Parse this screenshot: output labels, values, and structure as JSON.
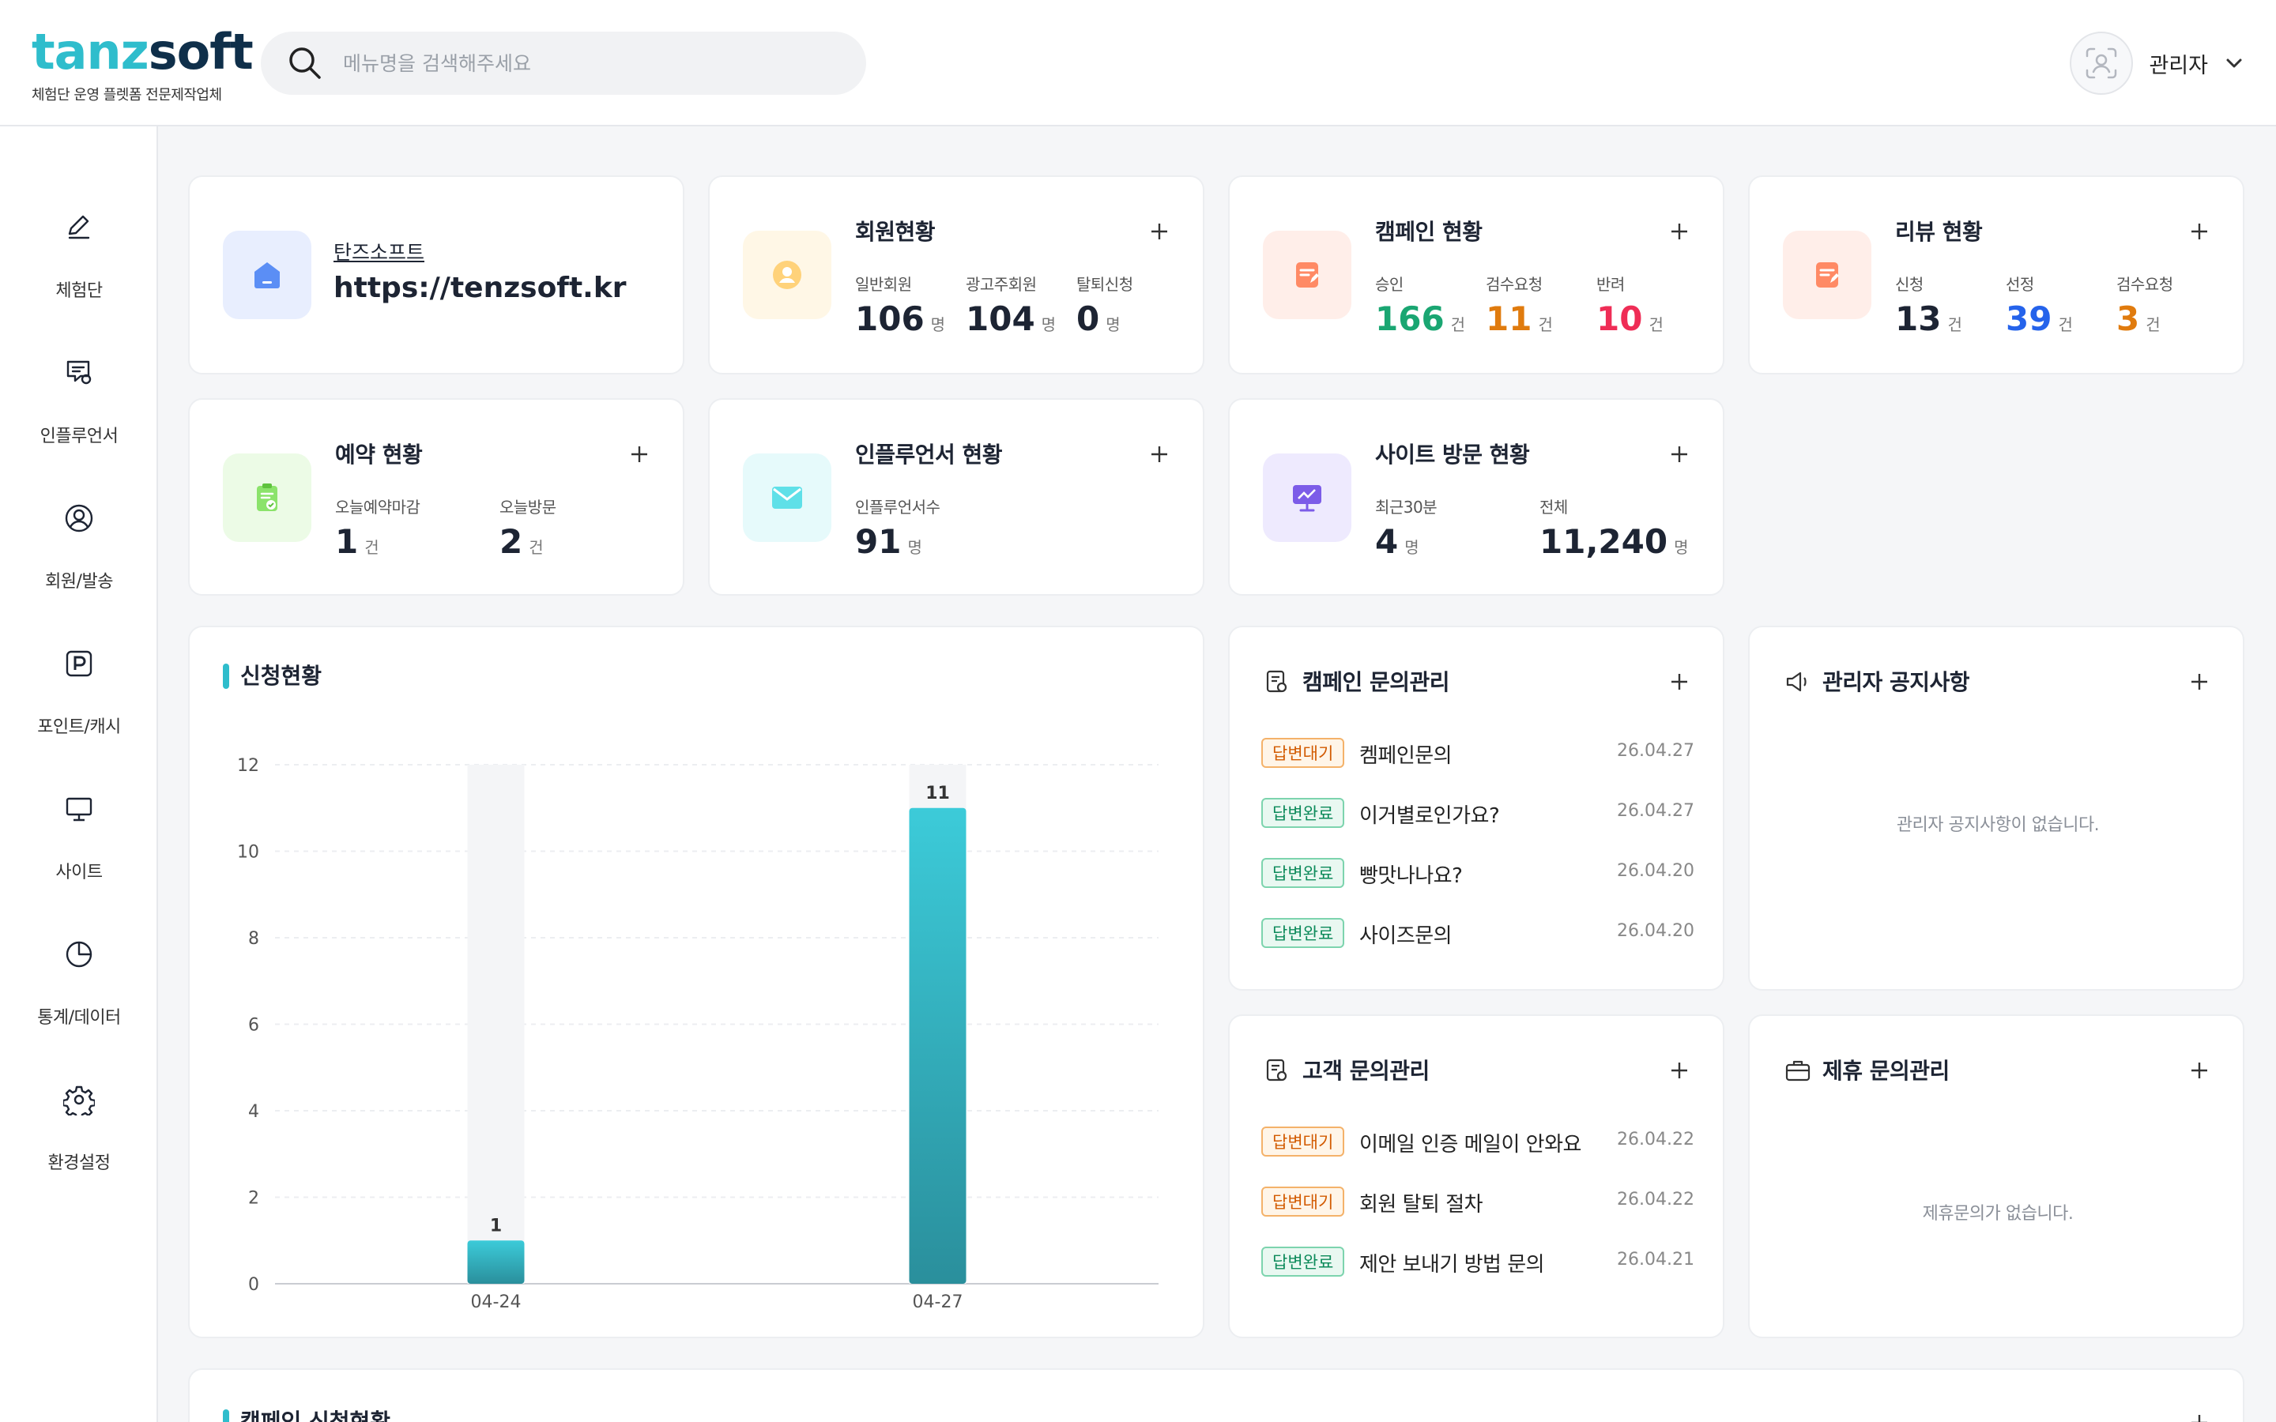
{
  "header": {
    "logo_part1": "tanz",
    "logo_part2": "soft",
    "logo_sub": "체험단 운영 플렛폼 전문제작업체",
    "search_placeholder": "메뉴명을 검색해주세요",
    "user_name": "관리자"
  },
  "sidebar": {
    "items": [
      {
        "label": "체험단",
        "icon": "pencil-icon"
      },
      {
        "label": "인플루언서",
        "icon": "chat-icon"
      },
      {
        "label": "회원/발송",
        "icon": "user-icon"
      },
      {
        "label": "포인트/캐시",
        "icon": "point-icon"
      },
      {
        "label": "사이트",
        "icon": "monitor-icon"
      },
      {
        "label": "통계/데이터",
        "icon": "pie-chart-icon"
      },
      {
        "label": "환경설정",
        "icon": "gear-icon"
      }
    ]
  },
  "org": {
    "name": "탄즈소프트",
    "url": "https://tenzsoft.kr"
  },
  "members": {
    "title": "회원현황",
    "stats": [
      {
        "label": "일반회원",
        "value": "106",
        "unit": "명"
      },
      {
        "label": "광고주회원",
        "value": "104",
        "unit": "명"
      },
      {
        "label": "탈퇴신청",
        "value": "0",
        "unit": "명"
      }
    ]
  },
  "campaign": {
    "title": "캠페인 현황",
    "stats": [
      {
        "label": "승인",
        "value": "166",
        "unit": "건",
        "color": "#1aa672"
      },
      {
        "label": "검수요청",
        "value": "11",
        "unit": "건",
        "color": "#e07b0e"
      },
      {
        "label": "반려",
        "value": "10",
        "unit": "건",
        "color": "#ef2d56"
      }
    ]
  },
  "review": {
    "title": "리뷰 현황",
    "stats": [
      {
        "label": "신청",
        "value": "13",
        "unit": "건",
        "color": "#1d2433"
      },
      {
        "label": "선정",
        "value": "39",
        "unit": "건",
        "color": "#2563eb"
      },
      {
        "label": "검수요청",
        "value": "3",
        "unit": "건",
        "color": "#e07b0e"
      }
    ]
  },
  "reservation": {
    "title": "예약 현황",
    "stats": [
      {
        "label": "오늘예약마감",
        "value": "1",
        "unit": "건"
      },
      {
        "label": "오늘방문",
        "value": "2",
        "unit": "건"
      }
    ]
  },
  "influencer": {
    "title": "인플루언서 현황",
    "stats": [
      {
        "label": "인플루언서수",
        "value": "91",
        "unit": "명"
      }
    ]
  },
  "visits": {
    "title": "사이트 방문 현황",
    "stats": [
      {
        "label": "최근30분",
        "value": "4",
        "unit": "명"
      },
      {
        "label": "전체",
        "value": "11,240",
        "unit": "명"
      }
    ]
  },
  "application_title": "신청현황",
  "chart_data": {
    "type": "bar",
    "title": "신청현황",
    "categories": [
      "04-24",
      "04-27"
    ],
    "values": [
      1,
      11
    ],
    "ylim": [
      0,
      12
    ],
    "yticks": [
      "0",
      "2",
      "4",
      "6",
      "8",
      "10",
      "12"
    ],
    "grid": true,
    "bar_color": "#32bfcf"
  },
  "campaign_inquiry": {
    "title": "캠페인 문의관리",
    "rows": [
      {
        "status": "답변대기",
        "type": "wait",
        "text": "켐페인문의",
        "date": "26.04.27"
      },
      {
        "status": "답변완료",
        "type": "done",
        "text": "이거별로인가요?",
        "date": "26.04.27"
      },
      {
        "status": "답변완료",
        "type": "done",
        "text": "빵맛나나요?",
        "date": "26.04.20"
      },
      {
        "status": "답변완료",
        "type": "done",
        "text": "사이즈문의",
        "date": "26.04.20"
      }
    ]
  },
  "notice": {
    "title": "관리자 공지사항",
    "empty": "관리자 공지사항이 없습니다."
  },
  "customer_inquiry": {
    "title": "고객 문의관리",
    "rows": [
      {
        "status": "답변대기",
        "type": "wait",
        "text": "이메일 인증 메일이 안와요",
        "date": "26.04.22"
      },
      {
        "status": "답변대기",
        "type": "wait",
        "text": "회원 탈퇴 절차",
        "date": "26.04.22"
      },
      {
        "status": "답변완료",
        "type": "done",
        "text": "제안 보내기 방법 문의",
        "date": "26.04.21"
      }
    ]
  },
  "partner": {
    "title": "제휴 문의관리",
    "empty": "제휴문의가 없습니다."
  },
  "bottom_title": "캠페인 신청현황"
}
